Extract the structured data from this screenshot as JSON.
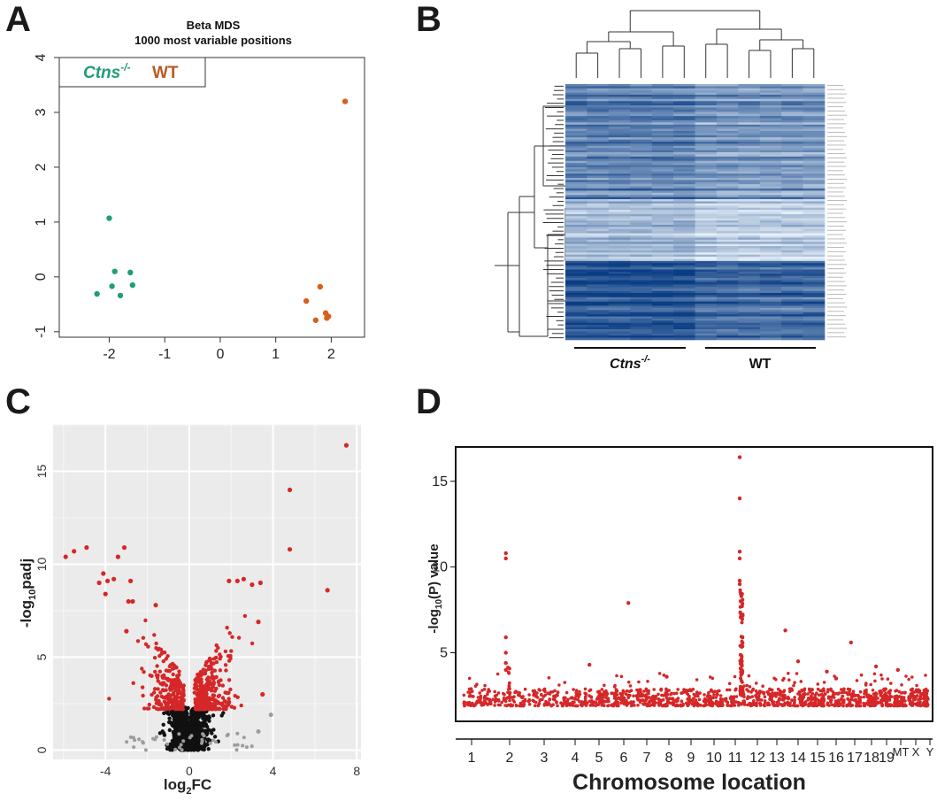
{
  "panels": [
    "A",
    "B",
    "C",
    "D"
  ],
  "chart_data": [
    {
      "panel": "A",
      "type": "scatter",
      "title": "Beta MDS",
      "subtitle": "1000 most variable positions",
      "xlabel": "",
      "ylabel": "",
      "xlim": [
        -2.9,
        2.6
      ],
      "ylim": [
        -1.1,
        4.0
      ],
      "xticks": [
        "-2",
        "-1",
        "0",
        "1",
        "2"
      ],
      "yticks": [
        "-1",
        "0",
        "1",
        "2",
        "3",
        "4"
      ],
      "legend": {
        "position": "top-left",
        "entries": [
          {
            "label": "Ctns",
            "sup": "-/-",
            "color": "#1f9e77"
          },
          {
            "label": "WT",
            "color": "#d9601c"
          }
        ]
      },
      "series": [
        {
          "name": "Ctns-/-",
          "color": "#1f9e77",
          "points": [
            [
              -2.0,
              1.07
            ],
            [
              -1.9,
              0.1
            ],
            [
              -1.62,
              0.08
            ],
            [
              -1.95,
              -0.17
            ],
            [
              -1.58,
              -0.15
            ],
            [
              -2.22,
              -0.31
            ],
            [
              -1.8,
              -0.34
            ]
          ]
        },
        {
          "name": "WT",
          "color": "#d9601c",
          "points": [
            [
              2.25,
              3.2
            ],
            [
              1.8,
              -0.18
            ],
            [
              1.55,
              -0.44
            ],
            [
              1.9,
              -0.66
            ],
            [
              1.95,
              -0.72
            ],
            [
              1.92,
              -0.75
            ],
            [
              1.72,
              -0.79
            ]
          ]
        }
      ]
    },
    {
      "panel": "B",
      "type": "heatmap",
      "groups": [
        {
          "label": "Ctns",
          "sup": "-/-"
        },
        {
          "label": "WT"
        }
      ],
      "columns": 12,
      "color_low": "#e8f1f9",
      "color_high": "#0a3d84"
    },
    {
      "panel": "C",
      "type": "scatter",
      "title": "",
      "xlabel": "log",
      "xlabel_sub": "2",
      "xlabel_tail": "FC",
      "ylabel": "-log",
      "ylabel_sub": "10",
      "ylabel_tail": "padj",
      "xlim": [
        -6.5,
        8.2
      ],
      "ylim": [
        -0.5,
        17.5
      ],
      "xticks": [
        "-4",
        "0",
        "4",
        "8"
      ],
      "yticks": [
        "0",
        "5",
        "10",
        "15"
      ],
      "significant_color": "#d62728",
      "nonsignificant_color": "#000000",
      "highlighted_points": [
        [
          7.5,
          16.4
        ],
        [
          4.8,
          14.0
        ],
        [
          4.8,
          10.8
        ],
        [
          6.6,
          8.6
        ],
        [
          -5.9,
          10.4
        ],
        [
          -5.5,
          10.7
        ],
        [
          -4.9,
          10.9
        ],
        [
          -3.4,
          10.4
        ],
        [
          -3.1,
          10.9
        ],
        [
          -4.1,
          9.5
        ],
        [
          -3.9,
          9.1
        ],
        [
          -3.6,
          9.2
        ],
        [
          -4.3,
          9.0
        ],
        [
          -4.0,
          8.4
        ],
        [
          -2.8,
          9.1
        ],
        [
          -2.9,
          8.0
        ],
        [
          -2.7,
          8.0
        ],
        [
          -3.0,
          6.4
        ],
        [
          -1.6,
          7.8
        ],
        [
          1.9,
          9.1
        ],
        [
          2.3,
          9.1
        ],
        [
          2.6,
          9.2
        ],
        [
          3.0,
          8.9
        ],
        [
          3.4,
          9.0
        ],
        [
          3.3,
          6.9
        ],
        [
          3.5,
          3.0
        ]
      ],
      "grey_points": [
        [
          3.9,
          1.9
        ],
        [
          3.3,
          1.0
        ]
      ]
    },
    {
      "panel": "D",
      "type": "scatter",
      "title": "",
      "xlabel": "Chromosome location",
      "ylabel": "-log",
      "ylabel_sub": "10",
      "ylabel_tail": "(P) value",
      "ylim": [
        1.0,
        17.0
      ],
      "yticks": [
        "5",
        "10",
        "15"
      ],
      "xticks": [
        "1",
        "2",
        "3",
        "4",
        "5",
        "6",
        "7",
        "8",
        "9",
        "10",
        "11",
        "12",
        "13",
        "14",
        "15",
        "16",
        "17",
        "18",
        "19",
        "MT",
        "X",
        "Y"
      ],
      "color": "#d62728",
      "highlighted_points": [
        [
          1.9,
          10.8
        ],
        [
          1.9,
          10.5
        ],
        [
          1.9,
          5.9
        ],
        [
          1.9,
          5.0
        ],
        [
          1.9,
          4.4
        ],
        [
          1.9,
          4.0
        ],
        [
          6.2,
          7.9
        ],
        [
          11.2,
          16.4
        ],
        [
          11.2,
          14.0
        ],
        [
          11.2,
          10.9
        ],
        [
          11.2,
          10.5
        ],
        [
          11.2,
          9.2
        ],
        [
          11.2,
          9.0
        ],
        [
          13.4,
          6.3
        ],
        [
          14.0,
          4.5
        ],
        [
          16.8,
          5.6
        ],
        [
          4.6,
          4.3
        ],
        [
          18.3,
          4.2
        ],
        [
          19.8,
          4.0
        ],
        [
          15.5,
          3.9
        ],
        [
          16.0,
          3.5
        ],
        [
          7.9,
          3.6
        ]
      ]
    }
  ]
}
